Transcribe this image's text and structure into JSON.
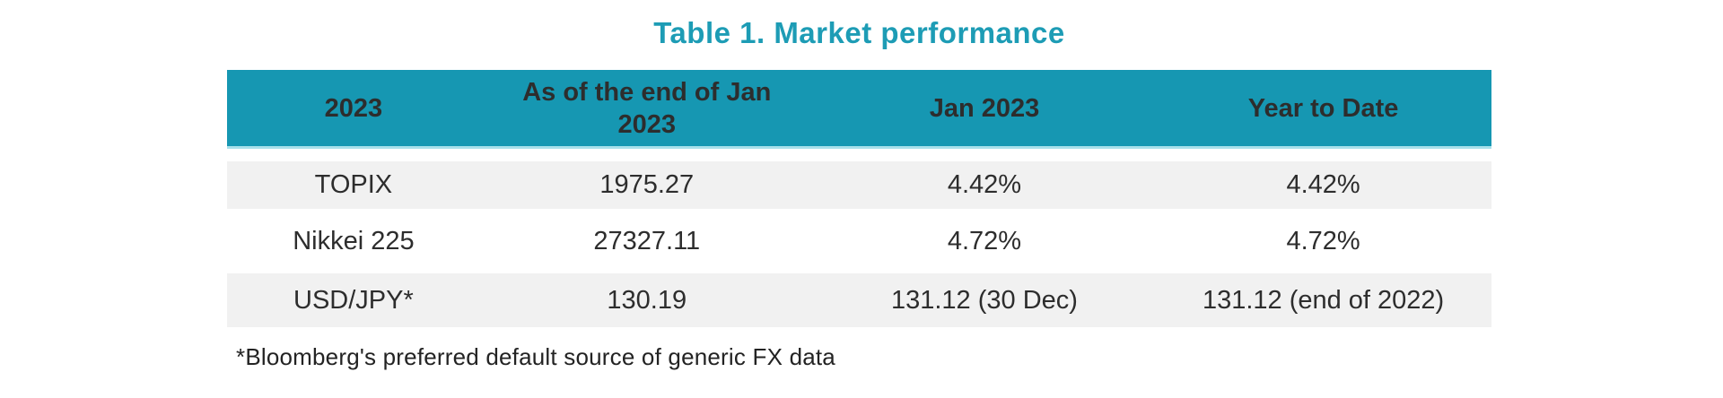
{
  "title": "Table 1. Market performance",
  "table": {
    "columns": [
      "2023",
      "As of the end of Jan 2023",
      "Jan 2023",
      "Year to Date"
    ],
    "rows": [
      [
        "TOPIX",
        "1975.27",
        "4.42%",
        "4.42%"
      ],
      [
        "Nikkei 225",
        "27327.11",
        "4.72%",
        "4.72%"
      ],
      [
        "USD/JPY*",
        "130.19",
        "131.12 (30 Dec)",
        "131.12 (end of 2022)"
      ]
    ],
    "footnote": "*Bloomberg's preferred default source of generic FX data"
  },
  "colors": {
    "header_background": "#1697b2",
    "header_underline": "#a8e0ea",
    "title_text": "#1d9cb5",
    "alt_row_background": "#f1f1f1",
    "body_text": "#2d2d2d"
  },
  "chart_data": {
    "type": "table",
    "title": "Table 1. Market performance",
    "columns": [
      "2023",
      "As of the end of Jan 2023",
      "Jan 2023",
      "Year to Date"
    ],
    "rows": [
      {
        "instrument": "TOPIX",
        "end_of_jan_2023": 1975.27,
        "jan_2023": "4.42%",
        "year_to_date": "4.42%"
      },
      {
        "instrument": "Nikkei 225",
        "end_of_jan_2023": 27327.11,
        "jan_2023": "4.72%",
        "year_to_date": "4.72%"
      },
      {
        "instrument": "USD/JPY*",
        "end_of_jan_2023": 130.19,
        "jan_2023": "131.12 (30 Dec)",
        "year_to_date": "131.12 (end of 2022)"
      }
    ],
    "footnote": "*Bloomberg's preferred default source of generic FX data"
  }
}
